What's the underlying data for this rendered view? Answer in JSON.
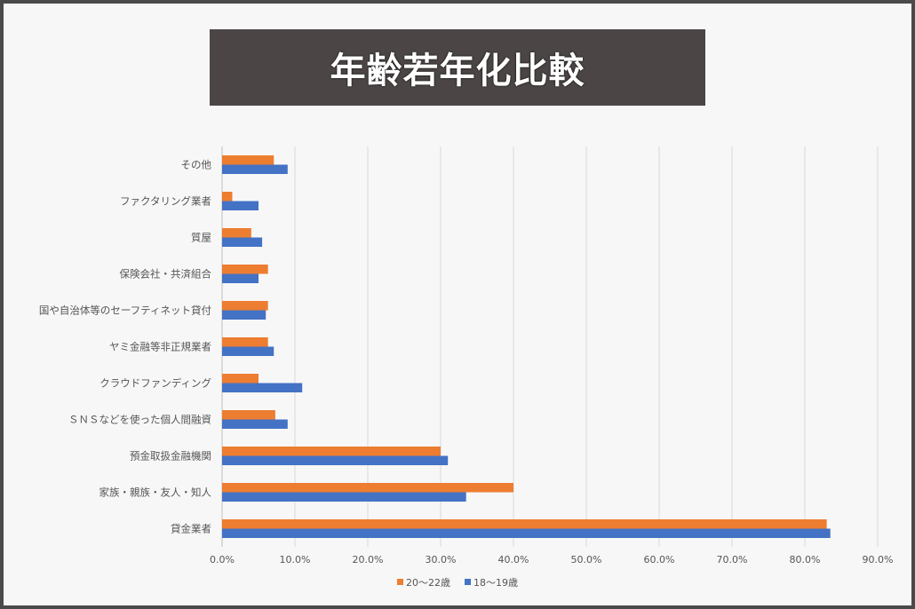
{
  "chart_data": {
    "type": "bar",
    "orientation": "horizontal",
    "title": "年齢若年化比較",
    "categories": [
      "その他",
      "ファクタリング業者",
      "質屋",
      "保険会社・共済組合",
      "国や自治体等のセーフティネット貸付",
      "ヤミ金融等非正規業者",
      "クラウドファンディング",
      "ＳＮＳなどを使った個人間融資",
      "預金取扱金融機関",
      "家族・親族・友人・知人",
      "貸金業者"
    ],
    "series": [
      {
        "name": "20〜22歳",
        "color": "#ed7d31",
        "values": [
          7.1,
          1.4,
          4.0,
          6.3,
          6.3,
          6.3,
          5.0,
          7.3,
          30.0,
          40.0,
          83.0
        ]
      },
      {
        "name": "18〜19歳",
        "color": "#4472c4",
        "values": [
          9.0,
          5.0,
          5.5,
          5.0,
          6.0,
          7.1,
          11.0,
          9.0,
          31.0,
          33.5,
          83.5
        ]
      }
    ],
    "xlim": [
      0,
      90
    ],
    "xticks": [
      "0.0%",
      "10.0%",
      "20.0%",
      "30.0%",
      "40.0%",
      "50.0%",
      "60.0%",
      "70.0%",
      "80.0%",
      "90.0%"
    ],
    "grid": true,
    "legend_position": "bottom"
  }
}
